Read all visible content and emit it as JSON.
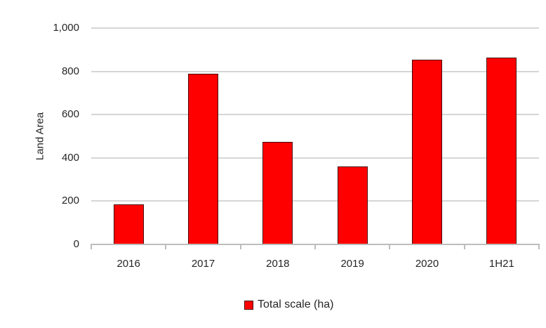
{
  "chart_data": {
    "type": "bar",
    "title": "",
    "xlabel": "",
    "ylabel": "Land Area",
    "categories": [
      "2016",
      "2017",
      "2018",
      "2019",
      "2020",
      "1H21"
    ],
    "series": [
      {
        "name": "Total scale (ha)",
        "values": [
          185,
          790,
          475,
          360,
          855,
          865
        ],
        "color": "#FE0000"
      }
    ],
    "ylim": [
      0,
      1000
    ],
    "yticks": [
      {
        "value": 0,
        "label": "0"
      },
      {
        "value": 200,
        "label": "200"
      },
      {
        "value": 400,
        "label": "400"
      },
      {
        "value": 600,
        "label": "600"
      },
      {
        "value": 800,
        "label": "800"
      },
      {
        "value": 1000,
        "label": "1,000"
      }
    ],
    "grid": true,
    "legend_position": "bottom"
  },
  "colors": {
    "bar_fill": "#FE0000",
    "bar_border": "#4A0808",
    "gridline": "#D6D6D6",
    "axis_line": "#BDBDBD",
    "text": "#262626",
    "background": "#FFFFFF"
  }
}
